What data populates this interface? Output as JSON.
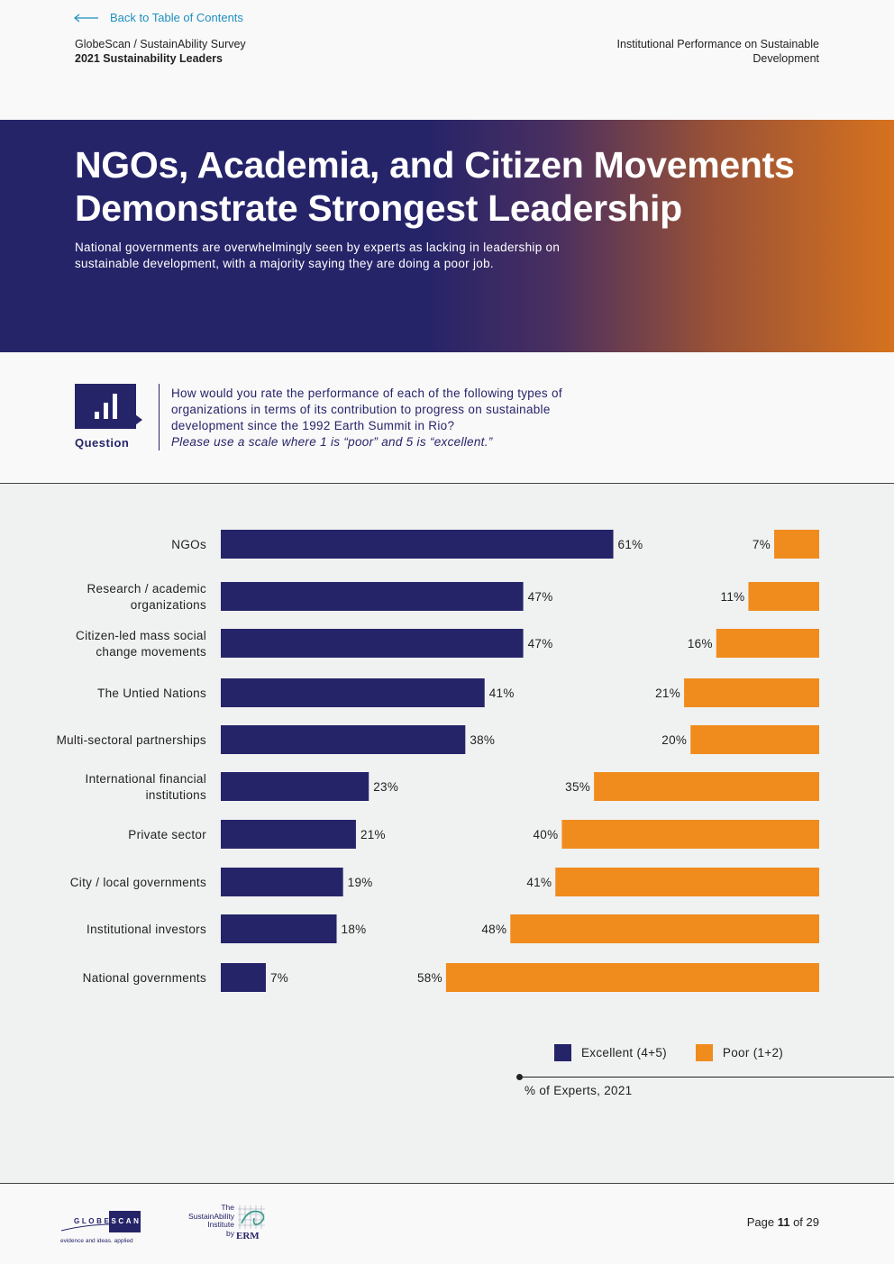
{
  "nav": {
    "back_label": "Back to Table of Contents"
  },
  "header": {
    "survey": "GlobeScan / SustainAbility Survey",
    "report": "2021 Sustainability Leaders",
    "section": "Institutional Performance on Sustainable Development"
  },
  "hero": {
    "title": "NGOs, Academia, and Citizen Movements Demonstrate Strongest Leadership",
    "subtitle": "National governments are overwhelmingly seen by experts as lacking in leadership on sustainable development, with a majority saying they are doing a poor job."
  },
  "question": {
    "label": "Question",
    "text": "How would you rate the performance of each of the following types of organizations in terms of its contribution to progress on sustainable development since the 1992 Earth Summit in Rio?",
    "note": "Please use a scale where 1 is “poor” and 5 is “excellent.”"
  },
  "chart_data": {
    "type": "bar",
    "orientation": "horizontal",
    "categories": [
      [
        "NGOs"
      ],
      [
        "Research / academic",
        "organizations"
      ],
      [
        "Citizen-led mass social",
        "change movements"
      ],
      [
        "The Untied Nations"
      ],
      [
        "Multi-sectoral partnerships"
      ],
      [
        "International financial",
        "institutions"
      ],
      [
        "Private sector"
      ],
      [
        "City / local governments"
      ],
      [
        "Institutional investors"
      ],
      [
        "National governments"
      ]
    ],
    "series": [
      {
        "name": "Excellent (4+5)",
        "color": "#262469",
        "values": [
          61,
          47,
          47,
          41,
          38,
          23,
          21,
          19,
          18,
          7
        ]
      },
      {
        "name": "Poor (1+2)",
        "color": "#f08c1e",
        "values": [
          7,
          11,
          16,
          21,
          20,
          35,
          40,
          41,
          48,
          58
        ]
      }
    ],
    "unit": "%",
    "title": "",
    "source": "% of Experts, 2021"
  },
  "legend": {
    "excellent": "Excellent (4+5)",
    "poor": "Poor (1+2)",
    "excellent_color": "#262469",
    "poor_color": "#f08c1e"
  },
  "footer": {
    "globescan_word_a": "GLOBE",
    "globescan_word_b": "SCAN",
    "globescan_tagline": "evidence and ideas. applied",
    "sustainability_l1": "The",
    "sustainability_l2": "SustainAbility",
    "sustainability_l3": "Institute",
    "sustainability_l4": "by",
    "erm": "ERM",
    "page_prefix": "Page",
    "page_current": "11",
    "page_sep": "of",
    "page_total": "29"
  }
}
